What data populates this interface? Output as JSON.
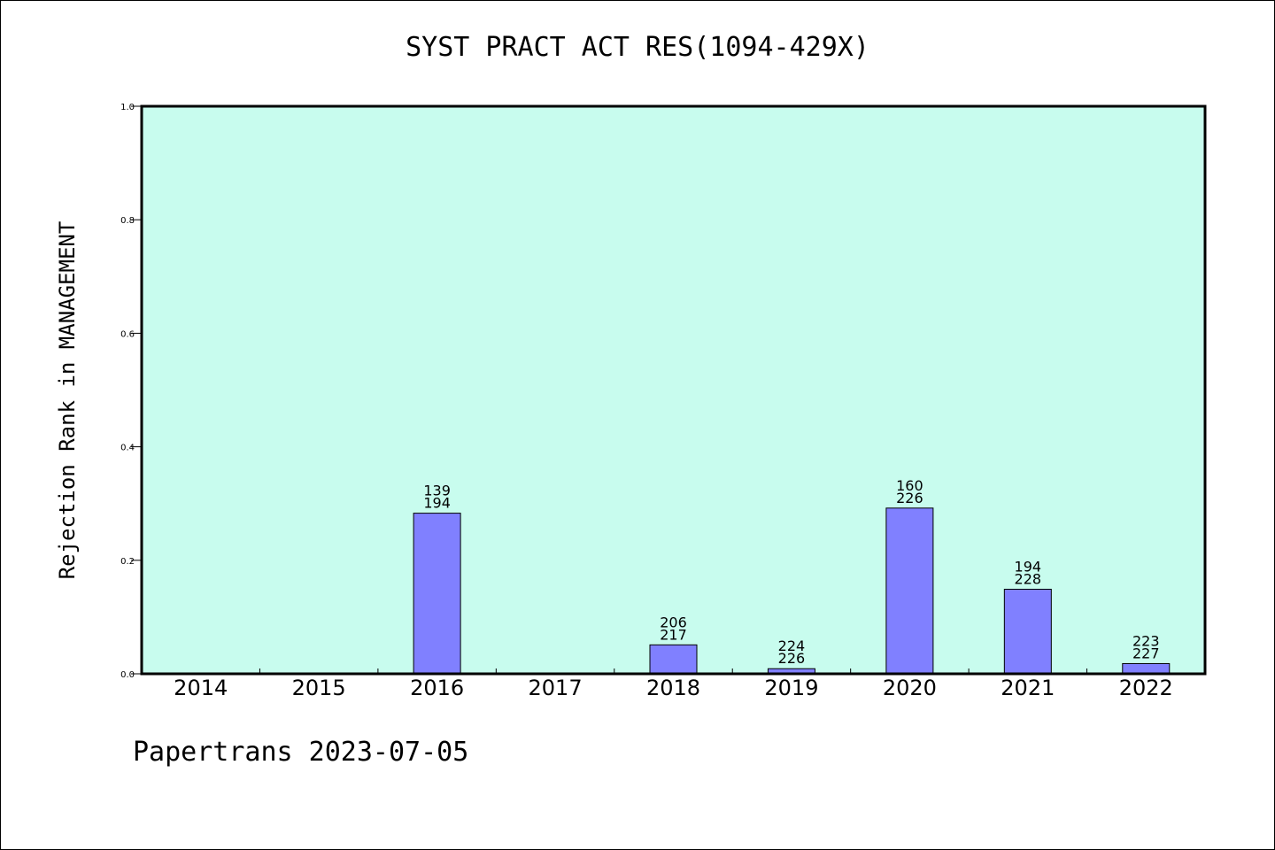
{
  "page": {
    "footer": "Papertrans 2023-07-05"
  },
  "colors": {
    "plot_background": "#c8fcee",
    "bar_fill": "#8080ff",
    "bar_stroke": "#000000",
    "axis": "#000000"
  },
  "chart_data": {
    "type": "bar",
    "title": "SYST PRACT ACT RES(1094-429X)",
    "xlabel": "",
    "ylabel": "Rejection Rank in MANAGEMENT",
    "ylim": [
      0,
      1.0
    ],
    "yticks": [
      "0.0",
      "0.2",
      "0.4",
      "0.6",
      "0.8",
      "1.0"
    ],
    "grid": false,
    "categories": [
      "2014",
      "2015",
      "2016",
      "2017",
      "2018",
      "2019",
      "2020",
      "2021",
      "2022"
    ],
    "values": [
      0,
      0,
      0.283,
      0,
      0.051,
      0.009,
      0.292,
      0.149,
      0.018
    ],
    "labels": [
      null,
      null,
      [
        "139",
        "194"
      ],
      null,
      [
        "206",
        "217"
      ],
      [
        "224",
        "226"
      ],
      [
        "160",
        "226"
      ],
      [
        "194",
        "228"
      ],
      [
        "223",
        "227"
      ]
    ]
  }
}
